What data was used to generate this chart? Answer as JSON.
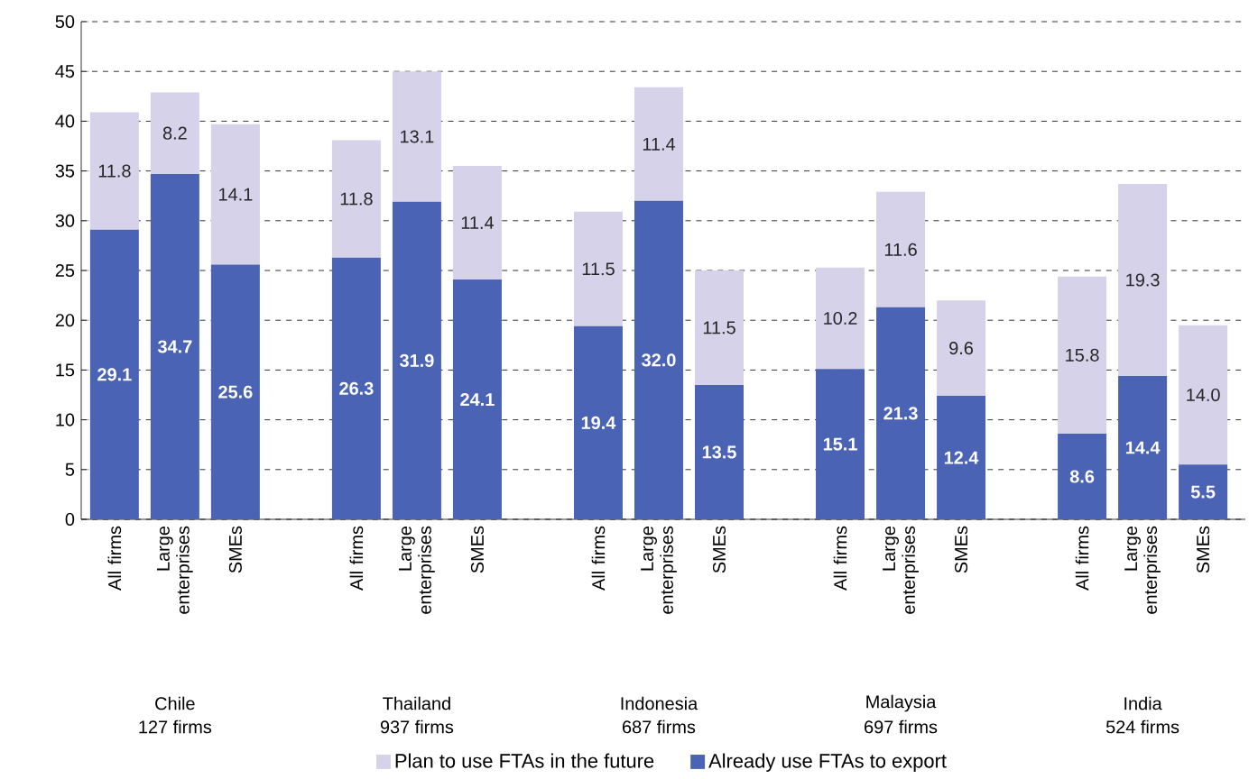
{
  "chart_data": {
    "type": "bar",
    "stacked": true,
    "categories": [
      "All firms",
      "Large enterprises",
      "SMEs",
      null,
      "All firms",
      "Large enterprises",
      "SMEs",
      null,
      "All firms",
      "Large enterprises",
      "SMEs",
      null,
      "All firms",
      "Large enterprises",
      "SMEs",
      null,
      "All firms",
      "Large enterprises",
      "SMEs"
    ],
    "series": [
      {
        "name": "Already use FTAs to export",
        "color": "#4a63b4",
        "values": [
          29.1,
          34.7,
          25.6,
          null,
          26.3,
          31.9,
          24.1,
          null,
          19.4,
          32.0,
          13.5,
          null,
          15.1,
          21.3,
          12.4,
          null,
          8.6,
          14.4,
          5.5
        ],
        "value_labels": [
          "29.1",
          "34.7",
          "25.6",
          null,
          "26.3",
          "31.9",
          "24.1",
          null,
          "19.4",
          "32.0",
          "13.5",
          null,
          "15.1",
          "21.3",
          "12.4",
          null,
          "8.6",
          "14.4",
          "5.5"
        ]
      },
      {
        "name": "Plan to use FTAs in the future",
        "color": "#d6d2ea",
        "values": [
          11.8,
          8.2,
          14.1,
          null,
          11.8,
          13.1,
          11.4,
          null,
          11.5,
          11.4,
          11.5,
          null,
          10.2,
          11.6,
          9.6,
          null,
          15.8,
          19.3,
          14.0
        ],
        "value_labels": [
          "11.8",
          "8.2",
          "14.1",
          null,
          "11.8",
          "13.1",
          "11.4",
          null,
          "11.5",
          "11.4",
          "11.5",
          null,
          "10.2",
          "11.6",
          "9.6",
          null,
          "15.8",
          "19.3",
          "14.0"
        ]
      }
    ],
    "ylim": [
      0,
      50
    ],
    "yticks": [
      0,
      5,
      10,
      15,
      20,
      25,
      30,
      35,
      40,
      45,
      50
    ],
    "grid": "y",
    "legend": "bottom",
    "annotations": [
      "Chile",
      "127 firms",
      "Thailand",
      "937 firms",
      "Indonesia",
      "687 firms",
      "Malaysia",
      "697 firms",
      "India",
      "524 firms"
    ]
  }
}
